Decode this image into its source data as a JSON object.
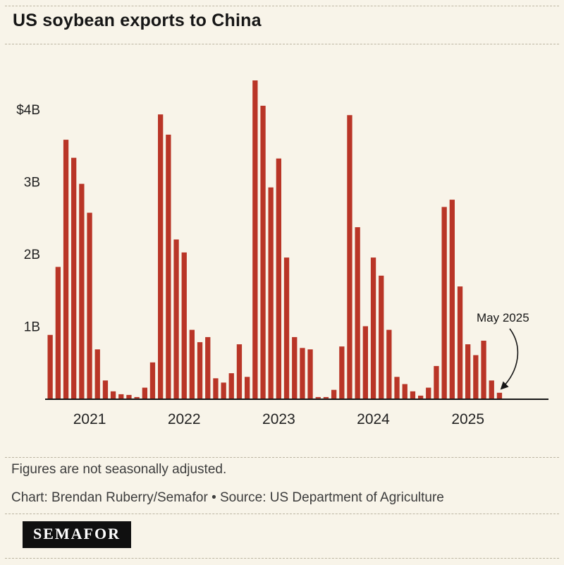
{
  "header": {
    "title": "US soybean exports to China"
  },
  "footer": {
    "note": "Figures are not seasonally adjusted.",
    "credit": "Chart: Brendan Ruberry/Semafor • Source: US Department of Agriculture",
    "logo_text": "SEMAFOR"
  },
  "colors": {
    "background": "#f8f4e9",
    "bar": "#b93527",
    "axis_text": "#222222",
    "baseline": "#161616",
    "dashed_rule": "#bcb5a2",
    "logo_background": "#101010",
    "logo_text": "#ffffff"
  },
  "chart_data": {
    "type": "bar",
    "title": "US soybean exports to China",
    "unit": "USD billions, monthly",
    "xlabel": "",
    "ylabel": "",
    "ylim": [
      0,
      4.6
    ],
    "grid": false,
    "bar_color": "#b93527",
    "y_ticks": [
      {
        "value": 4,
        "label": "$4B"
      },
      {
        "value": 3,
        "label": "3B"
      },
      {
        "value": 2,
        "label": "2B"
      },
      {
        "value": 1,
        "label": "1B"
      }
    ],
    "x_year_labels": [
      "2021",
      "2022",
      "2023",
      "2024",
      "2025"
    ],
    "annotation": {
      "label": "May 2025",
      "target_month": "2025-05"
    },
    "months": [
      "2020-08",
      "2020-09",
      "2020-10",
      "2020-11",
      "2020-12",
      "2021-01",
      "2021-02",
      "2021-03",
      "2021-04",
      "2021-05",
      "2021-06",
      "2021-07",
      "2021-08",
      "2021-09",
      "2021-10",
      "2021-11",
      "2021-12",
      "2022-01",
      "2022-02",
      "2022-03",
      "2022-04",
      "2022-05",
      "2022-06",
      "2022-07",
      "2022-08",
      "2022-09",
      "2022-10",
      "2022-11",
      "2022-12",
      "2023-01",
      "2023-02",
      "2023-03",
      "2023-04",
      "2023-05",
      "2023-06",
      "2023-07",
      "2023-08",
      "2023-09",
      "2023-10",
      "2023-11",
      "2023-12",
      "2024-01",
      "2024-02",
      "2024-03",
      "2024-04",
      "2024-05",
      "2024-06",
      "2024-07",
      "2024-08",
      "2024-09",
      "2024-10",
      "2024-11",
      "2024-12",
      "2025-01",
      "2025-02",
      "2025-03",
      "2025-04",
      "2025-05"
    ],
    "values": [
      0.88,
      1.82,
      3.58,
      3.33,
      2.97,
      2.57,
      0.68,
      0.25,
      0.1,
      0.06,
      0.05,
      0.02,
      0.15,
      0.5,
      3.93,
      3.65,
      2.2,
      2.02,
      0.95,
      0.78,
      0.85,
      0.28,
      0.22,
      0.35,
      0.75,
      0.3,
      4.4,
      4.05,
      2.92,
      3.32,
      1.95,
      0.85,
      0.7,
      0.68,
      0.02,
      0.02,
      0.12,
      0.72,
      3.92,
      2.37,
      1.0,
      1.95,
      1.7,
      0.95,
      0.3,
      0.2,
      0.1,
      0.04,
      0.15,
      0.45,
      2.65,
      2.75,
      1.55,
      0.75,
      0.6,
      0.8,
      0.25,
      0.08
    ]
  }
}
